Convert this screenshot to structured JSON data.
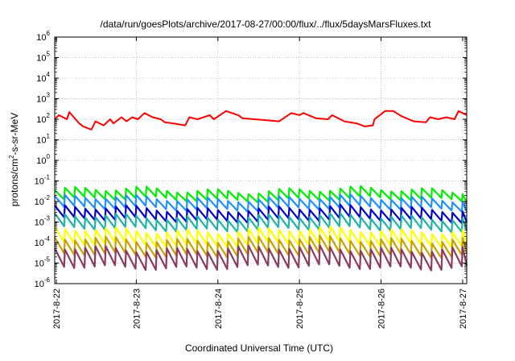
{
  "chart_data": {
    "type": "line",
    "title": "/data/run/goesPlots/archive/2017-08-27/00:00/flux/../flux/5daysMarsFluxes.txt",
    "xlabel": "Coordinated Universal Time (UTC)",
    "ylabel_parts": [
      "protons/cm",
      "2",
      "-s-sr-MeV"
    ],
    "yscale": "log",
    "ylim_exp": [
      -6,
      6
    ],
    "y_ticks": [
      {
        "base": "10",
        "exp": "-6",
        "value": -6
      },
      {
        "base": "10",
        "exp": "-5",
        "value": -5
      },
      {
        "base": "10",
        "exp": "-4",
        "value": -4
      },
      {
        "base": "10",
        "exp": "-3",
        "value": -3
      },
      {
        "base": "10",
        "exp": "-2",
        "value": -2
      },
      {
        "base": "10",
        "exp": "-1",
        "value": -1
      },
      {
        "base": "10",
        "exp": "0",
        "value": 0
      },
      {
        "base": "10",
        "exp": "1",
        "value": 1
      },
      {
        "base": "10",
        "exp": "2",
        "value": 2
      },
      {
        "base": "10",
        "exp": "3",
        "value": 3
      },
      {
        "base": "10",
        "exp": "4",
        "value": 4
      },
      {
        "base": "10",
        "exp": "5",
        "value": 5
      },
      {
        "base": "10",
        "exp": "6",
        "value": 6
      }
    ],
    "x_ticks": [
      "2017-8-22",
      "2017-8-23",
      "2017-8-24",
      "2017-8-25",
      "2017-8-26",
      "2017-8-27"
    ],
    "x_tick_days": [
      0.02,
      1.0,
      2.0,
      3.0,
      4.0,
      5.0
    ],
    "xlim_days": [
      0,
      5.05
    ],
    "grid": true,
    "series": [
      {
        "color": "#ff0000",
        "x_days": [
          0.0,
          0.05,
          0.15,
          0.18,
          0.3,
          0.35,
          0.45,
          0.5,
          0.6,
          0.68,
          0.72,
          0.82,
          0.88,
          0.95,
          1.02,
          1.1,
          1.2,
          1.3,
          1.35,
          1.45,
          1.6,
          1.65,
          1.75,
          1.9,
          1.95,
          2.1,
          2.25,
          2.3,
          2.45,
          2.6,
          2.75,
          2.9,
          3.0,
          3.05,
          3.2,
          3.35,
          3.4,
          3.55,
          3.7,
          3.8,
          3.9,
          3.92,
          4.05,
          4.15,
          4.25,
          4.4,
          4.55,
          4.6,
          4.7,
          4.8,
          4.9,
          4.95,
          5.05
        ],
        "log_y": [
          2.0,
          2.2,
          2.0,
          2.35,
          1.8,
          1.65,
          1.5,
          1.9,
          1.7,
          2.0,
          1.8,
          2.1,
          1.9,
          2.1,
          2.0,
          2.3,
          2.1,
          2.0,
          1.85,
          1.8,
          1.7,
          2.1,
          2.0,
          2.2,
          2.0,
          2.4,
          2.2,
          2.05,
          2.0,
          1.95,
          1.9,
          2.3,
          2.2,
          2.3,
          2.05,
          2.0,
          2.2,
          1.9,
          1.8,
          1.65,
          1.7,
          2.0,
          2.4,
          2.4,
          2.15,
          1.9,
          1.85,
          2.1,
          2.0,
          2.1,
          2.0,
          2.4,
          2.2
        ]
      },
      {
        "color": "#00ee00",
        "base": -1.45,
        "amp": 0.45,
        "phase": 0.0
      },
      {
        "color": "#1e90ff",
        "base": -1.85,
        "amp": 0.5,
        "phase": 0.08
      },
      {
        "color": "#0000cc",
        "base": -2.35,
        "amp": 0.55,
        "phase": 0.12
      },
      {
        "color": "#20b2aa",
        "base": -2.75,
        "amp": 0.6,
        "phase": 0.18
      },
      {
        "color": "#ffff00",
        "base": -3.4,
        "amp": 0.7,
        "phase": 0.24
      },
      {
        "color": "#c8a000",
        "base": -3.85,
        "amp": 0.75,
        "phase": 0.3
      },
      {
        "color": "#8b3a62",
        "base": -4.3,
        "amp": 0.9,
        "phase": 0.36
      }
    ]
  }
}
